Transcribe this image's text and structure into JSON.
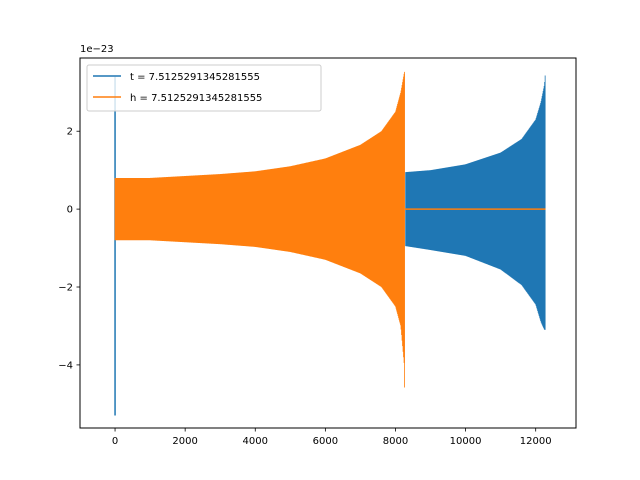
{
  "chart_data": {
    "type": "line",
    "title": "",
    "xlabel": "",
    "ylabel": "",
    "offset_text": "1e−23",
    "xlim": [
      -1000,
      13150
    ],
    "ylim": [
      -5.62,
      3.88
    ],
    "x_ticks": [
      0,
      2000,
      4000,
      6000,
      8000,
      10000,
      12000
    ],
    "x_tick_labels": [
      "0",
      "2000",
      "4000",
      "6000",
      "8000",
      "10000",
      "12000"
    ],
    "y_ticks": [
      -4,
      -2,
      0,
      2
    ],
    "y_tick_labels": [
      "−4",
      "−2",
      "0",
      "2"
    ],
    "grid": false,
    "legend_position": "upper-left",
    "series": [
      {
        "name": "t = 7.5125291345281555",
        "color": "#1f77b4",
        "segments": [
          {
            "kind": "spike",
            "x": 0,
            "y_min": -5.3,
            "y_max": 3.4
          },
          {
            "kind": "envelope",
            "x_start": 8290,
            "x_end": 12280,
            "envelope": [
              [
                8290,
                0.95
              ],
              [
                9000,
                1.0
              ],
              [
                10000,
                1.15
              ],
              [
                11000,
                1.45
              ],
              [
                11600,
                1.8
              ],
              [
                12000,
                2.3
              ],
              [
                12150,
                2.75
              ],
              [
                12250,
                3.2
              ],
              [
                12280,
                3.55
              ]
            ],
            "lower_envelope": [
              [
                8290,
                -0.95
              ],
              [
                9000,
                -1.05
              ],
              [
                10000,
                -1.2
              ],
              [
                11000,
                -1.55
              ],
              [
                11600,
                -1.95
              ],
              [
                12000,
                -2.45
              ],
              [
                12150,
                -2.9
              ],
              [
                12250,
                -3.1
              ],
              [
                12280,
                -3.1
              ]
            ]
          }
        ]
      },
      {
        "name": "h = 7.5125291345281555",
        "color": "#ff7f0e",
        "segments": [
          {
            "kind": "envelope",
            "x_start": 0,
            "x_end": 8270,
            "envelope": [
              [
                0,
                0.8
              ],
              [
                1000,
                0.8
              ],
              [
                2000,
                0.85
              ],
              [
                3000,
                0.9
              ],
              [
                4000,
                0.97
              ],
              [
                5000,
                1.1
              ],
              [
                6000,
                1.3
              ],
              [
                7000,
                1.65
              ],
              [
                7600,
                2.0
              ],
              [
                8000,
                2.5
              ],
              [
                8150,
                3.0
              ],
              [
                8250,
                3.5
              ],
              [
                8270,
                3.55
              ]
            ],
            "lower_envelope": [
              [
                0,
                -0.8
              ],
              [
                1000,
                -0.8
              ],
              [
                2000,
                -0.85
              ],
              [
                3000,
                -0.9
              ],
              [
                4000,
                -0.97
              ],
              [
                5000,
                -1.1
              ],
              [
                6000,
                -1.3
              ],
              [
                7000,
                -1.65
              ],
              [
                7600,
                -2.0
              ],
              [
                8000,
                -2.5
              ],
              [
                8150,
                -3.0
              ],
              [
                8250,
                -4.0
              ],
              [
                8270,
                -5.3
              ]
            ]
          },
          {
            "kind": "flat",
            "x_start": 8270,
            "x_end": 12280,
            "y": 0
          }
        ]
      }
    ]
  }
}
